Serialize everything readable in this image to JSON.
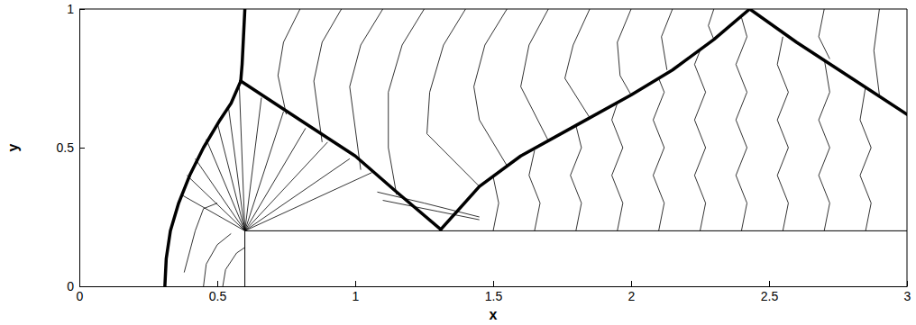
{
  "chart_data": {
    "type": "contour",
    "xlabel": "x",
    "ylabel": "y",
    "xlim": [
      0,
      3
    ],
    "ylim": [
      0,
      1
    ],
    "xticks": [
      0,
      0.5,
      1,
      1.5,
      2,
      2.5,
      3
    ],
    "yticks": [
      0,
      0.5,
      1
    ],
    "step": {
      "x": [
        0.6,
        0.6,
        3
      ],
      "y": [
        0,
        0.2,
        0.2
      ]
    },
    "shocks": [
      {
        "x": [
          0.31,
          0.315,
          0.33,
          0.36,
          0.4,
          0.45,
          0.51,
          0.55,
          0.585
        ],
        "y": [
          0,
          0.1,
          0.2,
          0.3,
          0.4,
          0.5,
          0.6,
          0.66,
          0.74
        ]
      },
      {
        "x": [
          0.585,
          0.59,
          0.595,
          0.6
        ],
        "y": [
          0.74,
          0.8,
          0.9,
          1.0
        ]
      },
      {
        "x": [
          0.585,
          0.8,
          1.0,
          1.15,
          1.31
        ],
        "y": [
          0.74,
          0.6,
          0.47,
          0.34,
          0.205
        ]
      },
      {
        "x": [
          1.31,
          1.45,
          1.6,
          1.8,
          2.0,
          2.15,
          2.3,
          2.43
        ],
        "y": [
          0.205,
          0.36,
          0.47,
          0.58,
          0.69,
          0.78,
          0.89,
          1.0
        ]
      },
      {
        "x": [
          2.43,
          2.6,
          2.8,
          3.0
        ],
        "y": [
          1.0,
          0.88,
          0.75,
          0.62
        ]
      }
    ],
    "contours": [
      {
        "x": [
          0.6,
          0.37
        ],
        "y": [
          0.2,
          0.33
        ]
      },
      {
        "x": [
          0.6,
          0.39
        ],
        "y": [
          0.2,
          0.4
        ]
      },
      {
        "x": [
          0.6,
          0.42
        ],
        "y": [
          0.2,
          0.46
        ]
      },
      {
        "x": [
          0.6,
          0.46
        ],
        "y": [
          0.2,
          0.53
        ]
      },
      {
        "x": [
          0.6,
          0.5
        ],
        "y": [
          0.2,
          0.59
        ]
      },
      {
        "x": [
          0.6,
          0.54
        ],
        "y": [
          0.2,
          0.65
        ]
      },
      {
        "x": [
          0.6,
          0.58
        ],
        "y": [
          0.2,
          0.72
        ]
      },
      {
        "x": [
          0.6,
          0.66
        ],
        "y": [
          0.2,
          0.68
        ]
      },
      {
        "x": [
          0.6,
          0.74
        ],
        "y": [
          0.2,
          0.63
        ]
      },
      {
        "x": [
          0.6,
          0.82
        ],
        "y": [
          0.2,
          0.57
        ]
      },
      {
        "x": [
          0.6,
          0.9
        ],
        "y": [
          0.2,
          0.52
        ]
      },
      {
        "x": [
          0.6,
          0.98
        ],
        "y": [
          0.2,
          0.46
        ]
      },
      {
        "x": [
          0.6,
          1.06
        ],
        "y": [
          0.2,
          0.41
        ]
      },
      {
        "x": [
          0.8,
          0.74,
          0.72,
          0.75
        ],
        "y": [
          1.0,
          0.88,
          0.76,
          0.62
        ]
      },
      {
        "x": [
          0.95,
          0.88,
          0.85,
          0.88
        ],
        "y": [
          1.0,
          0.88,
          0.74,
          0.52
        ]
      },
      {
        "x": [
          1.1,
          1.02,
          0.98,
          1.02
        ],
        "y": [
          1.0,
          0.87,
          0.72,
          0.42
        ]
      },
      {
        "x": [
          1.25,
          1.17,
          1.12,
          1.12,
          1.15
        ],
        "y": [
          1.0,
          0.87,
          0.7,
          0.5,
          0.33
        ]
      },
      {
        "x": [
          1.4,
          1.32,
          1.27,
          1.26,
          1.45
        ],
        "y": [
          1.0,
          0.87,
          0.7,
          0.55,
          0.36
        ]
      },
      {
        "x": [
          1.55,
          1.47,
          1.43,
          1.45,
          1.55
        ],
        "y": [
          1.0,
          0.87,
          0.72,
          0.6,
          0.435
        ]
      },
      {
        "x": [
          1.7,
          1.63,
          1.6,
          1.7
        ],
        "y": [
          1.0,
          0.87,
          0.72,
          0.525
        ]
      },
      {
        "x": [
          1.85,
          1.79,
          1.76,
          1.85
        ],
        "y": [
          1.0,
          0.87,
          0.75,
          0.608
        ]
      },
      {
        "x": [
          2.0,
          1.95,
          1.96,
          2.0
        ],
        "y": [
          1.0,
          0.88,
          0.76,
          0.69
        ]
      },
      {
        "x": [
          2.15,
          2.11,
          2.13
        ],
        "y": [
          1.0,
          0.9,
          0.78
        ]
      },
      {
        "x": [
          2.3,
          2.28,
          2.3
        ],
        "y": [
          1.0,
          0.94,
          0.89
        ]
      },
      {
        "x": [
          1.5,
          1.52,
          1.5
        ],
        "y": [
          0.2,
          0.3,
          0.395
        ]
      },
      {
        "x": [
          1.65,
          1.67,
          1.63,
          1.65
        ],
        "y": [
          0.2,
          0.3,
          0.4,
          0.49
        ]
      },
      {
        "x": [
          1.8,
          1.82,
          1.78,
          1.82,
          1.8
        ],
        "y": [
          0.2,
          0.3,
          0.4,
          0.5,
          0.58
        ]
      },
      {
        "x": [
          1.95,
          1.97,
          1.93,
          1.97,
          1.93,
          1.95
        ],
        "y": [
          0.2,
          0.3,
          0.4,
          0.5,
          0.6,
          0.66
        ]
      },
      {
        "x": [
          2.1,
          2.12,
          2.08,
          2.12,
          2.08,
          2.12,
          2.1
        ],
        "y": [
          0.2,
          0.3,
          0.4,
          0.5,
          0.6,
          0.7,
          0.75
        ]
      },
      {
        "x": [
          2.25,
          2.27,
          2.23,
          2.27,
          2.23,
          2.27,
          2.23,
          2.25
        ],
        "y": [
          0.2,
          0.3,
          0.4,
          0.5,
          0.6,
          0.7,
          0.8,
          0.85
        ]
      },
      {
        "x": [
          2.4,
          2.42,
          2.38,
          2.42,
          2.38,
          2.42,
          2.38,
          2.42,
          2.4
        ],
        "y": [
          0.2,
          0.3,
          0.4,
          0.5,
          0.6,
          0.7,
          0.8,
          0.9,
          0.97
        ]
      },
      {
        "x": [
          2.55,
          2.57,
          2.53,
          2.57,
          2.53,
          2.57,
          2.53,
          2.55
        ],
        "y": [
          0.2,
          0.3,
          0.4,
          0.5,
          0.6,
          0.7,
          0.8,
          0.9
        ]
      },
      {
        "x": [
          2.7,
          2.72,
          2.68,
          2.72,
          2.68,
          2.72,
          2.7
        ],
        "y": [
          0.2,
          0.3,
          0.4,
          0.5,
          0.6,
          0.7,
          0.82
        ]
      },
      {
        "x": [
          2.85,
          2.87,
          2.83,
          2.87,
          2.83,
          2.85
        ],
        "y": [
          0.2,
          0.3,
          0.4,
          0.5,
          0.6,
          0.72
        ]
      },
      {
        "x": [
          2.7,
          2.68,
          2.72
        ],
        "y": [
          1.0,
          0.9,
          0.82
        ]
      },
      {
        "x": [
          2.9,
          2.88,
          2.9
        ],
        "y": [
          1.0,
          0.85,
          0.69
        ]
      },
      {
        "x": [
          0.45,
          0.46,
          0.5,
          0.55
        ],
        "y": [
          0,
          0.08,
          0.15,
          0.19
        ]
      },
      {
        "x": [
          0.52,
          0.53,
          0.57,
          0.6
        ],
        "y": [
          0,
          0.06,
          0.12,
          0.14
        ]
      },
      {
        "x": [
          0.38,
          0.42,
          0.45,
          0.5
        ],
        "y": [
          0.05,
          0.2,
          0.28,
          0.3
        ]
      },
      {
        "x": [
          1.08,
          1.25,
          1.45
        ],
        "y": [
          0.34,
          0.3,
          0.25
        ]
      },
      {
        "x": [
          1.1,
          1.3,
          1.45
        ],
        "y": [
          0.31,
          0.27,
          0.24
        ]
      }
    ]
  }
}
